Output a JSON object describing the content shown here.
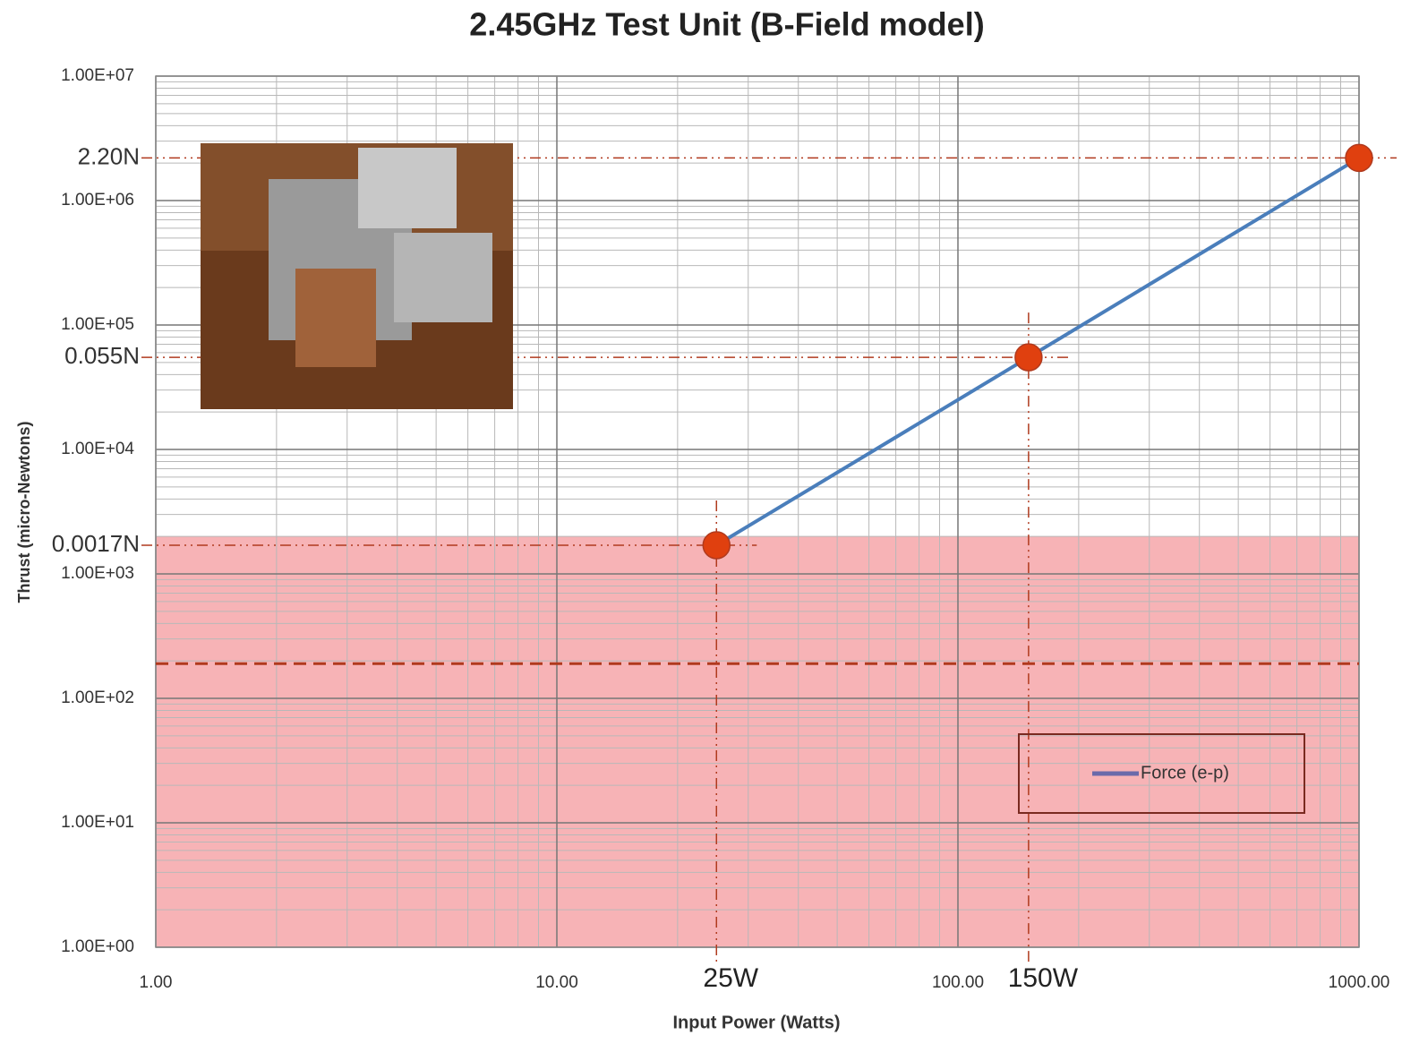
{
  "chart_data": {
    "type": "line",
    "title": "2.45GHz Test Unit (B-Field model)",
    "x_label": "Input Power (Watts)",
    "y_label": "Thrust (micro-Newtons)",
    "x_log": true,
    "y_log": true,
    "grid": true,
    "legend": "bottom-right",
    "x": [
      25,
      150,
      1000
    ],
    "series": [
      {
        "name": "Force (e-p)",
        "color": "#4a7ebb",
        "marker_color": "#e0400f",
        "values": [
          1700,
          55000,
          2200000
        ]
      }
    ],
    "xlim": [
      1,
      1000
    ],
    "ylim": [
      1,
      10000000
    ],
    "xticks": [
      {
        "value": 1,
        "label": "1.00"
      },
      {
        "value": 10,
        "label": "10.00"
      },
      {
        "value": 100,
        "label": "100.00"
      },
      {
        "value": 1000,
        "label": "1000.00"
      }
    ],
    "yticks": [
      {
        "value": 1,
        "label": "1.00E+00"
      },
      {
        "value": 10,
        "label": "1.00E+01"
      },
      {
        "value": 100,
        "label": "1.00E+02"
      },
      {
        "value": 1000,
        "label": "1.00E+03"
      },
      {
        "value": 10000,
        "label": "1.00E+04"
      },
      {
        "value": 100000,
        "label": "1.00E+05"
      },
      {
        "value": 1000000,
        "label": "1.00E+06"
      },
      {
        "value": 10000000,
        "label": "1.00E+07"
      }
    ],
    "x_annotations": [
      {
        "value": 25,
        "label": "25W"
      },
      {
        "value": 150,
        "label": "150W"
      }
    ],
    "y_annotations": [
      {
        "value": 2200000,
        "label": "2.20N"
      },
      {
        "value": 55000,
        "label": "0.055N"
      },
      {
        "value": 1700,
        "label": "0.0017N"
      }
    ],
    "shaded_band_top": 2000,
    "shaded_band_color": "#f7b3b6",
    "threshold_line": 190,
    "threshold_color": "#b03a1e"
  }
}
